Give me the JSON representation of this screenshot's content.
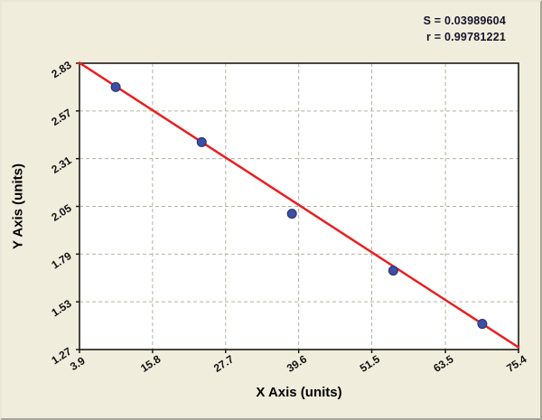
{
  "stats": {
    "s": "S = 0.03989604",
    "r": "r = 0.99781221"
  },
  "chart_data": {
    "type": "scatter",
    "title": "",
    "xlabel": "X Axis (units)",
    "ylabel": "Y Axis (units)",
    "xlim": [
      3.9,
      75.4
    ],
    "ylim": [
      1.27,
      2.83
    ],
    "x_ticks": [
      3.9,
      15.8,
      27.7,
      39.6,
      51.5,
      63.5,
      75.4
    ],
    "y_ticks": [
      1.27,
      1.53,
      1.79,
      2.05,
      2.31,
      2.57,
      2.83
    ],
    "grid": true,
    "grid_color": "#b3b3a2",
    "points": [
      [
        9.8,
        2.7
      ],
      [
        23.8,
        2.4
      ],
      [
        38.5,
        2.01
      ],
      [
        55.0,
        1.7
      ],
      [
        69.5,
        1.41
      ]
    ],
    "point_color": "#3c4ea5",
    "point_stroke": "#26336e",
    "line": {
      "x1": 3.9,
      "y1": 2.832,
      "x2": 75.4,
      "y2": 1.282,
      "color": "#ea1f1f"
    }
  }
}
